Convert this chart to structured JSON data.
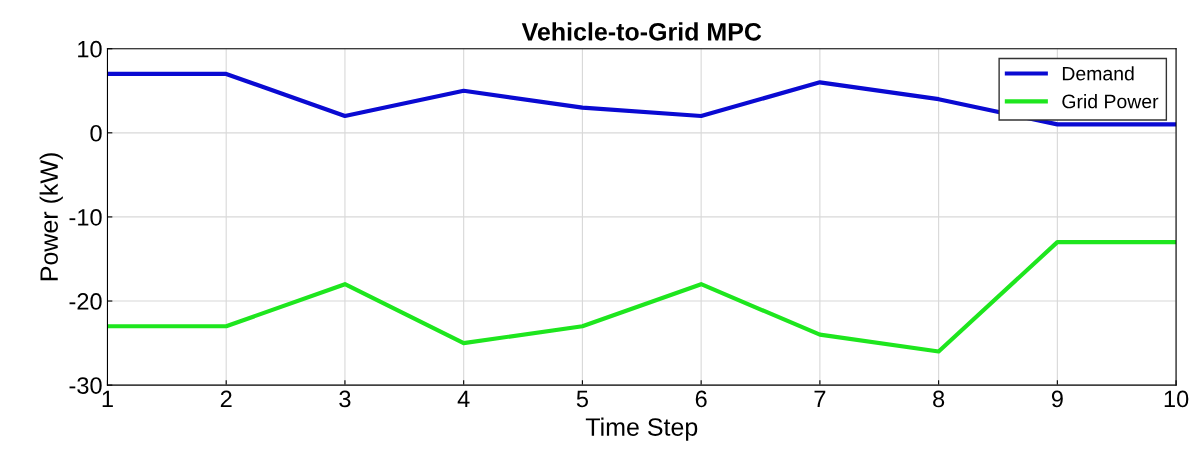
{
  "chart_data": {
    "type": "line",
    "title": "Vehicle-to-Grid MPC",
    "xlabel": "Time Step",
    "ylabel": "Power (kW)",
    "x": [
      1,
      2,
      3,
      4,
      5,
      6,
      7,
      8,
      9,
      10
    ],
    "series": [
      {
        "name": "Demand",
        "color": "#0a0ad2",
        "values": [
          7,
          7,
          2,
          5,
          3,
          2,
          6,
          4,
          1,
          1
        ]
      },
      {
        "name": "Grid Power",
        "color": "#1ee61e",
        "values": [
          -23,
          -23,
          -18,
          -25,
          -23,
          -18,
          -24,
          -26,
          -13,
          -13
        ]
      }
    ],
    "xlim": [
      1,
      10
    ],
    "xticks": [
      1,
      2,
      3,
      4,
      5,
      6,
      7,
      8,
      9,
      10
    ],
    "ylim": [
      -30,
      10
    ],
    "yticks": [
      -30,
      -20,
      -10,
      0,
      10
    ],
    "grid": true,
    "legend": "top right",
    "line_style": "solid",
    "marker": "none"
  }
}
